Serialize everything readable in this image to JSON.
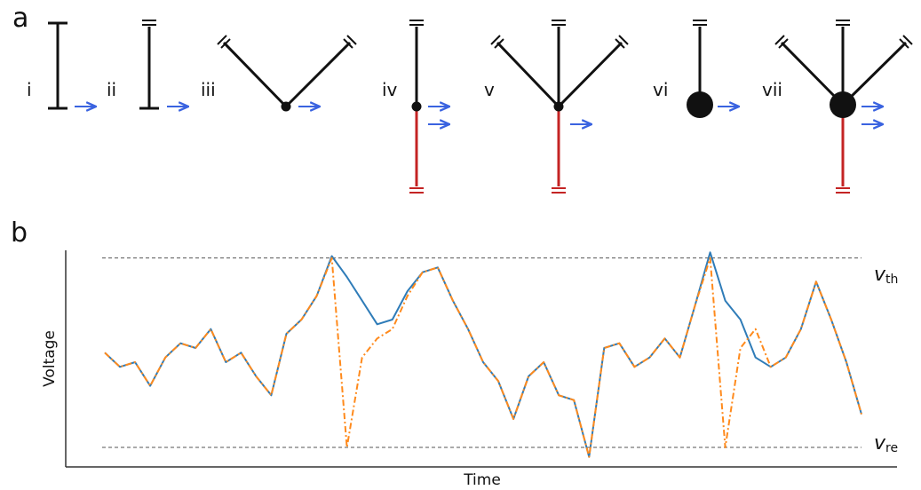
{
  "panel_a": {
    "label": "a",
    "models": [
      {
        "numeral": "i"
      },
      {
        "numeral": "ii"
      },
      {
        "numeral": "iii"
      },
      {
        "numeral": "iv"
      },
      {
        "numeral": "v"
      },
      {
        "numeral": "vi"
      },
      {
        "numeral": "vii"
      }
    ],
    "colors": {
      "dendrite": "#111111",
      "axon": "#c42424",
      "arrow": "#3a63e0"
    }
  },
  "panel_b": {
    "label": "b",
    "threshold_label": {
      "symbol": "v",
      "sub": "th"
    },
    "reset_label": {
      "symbol": "v",
      "sub": "re"
    },
    "colors": {
      "full": "#2f7cb8",
      "reduced": "#ff8a1c",
      "guide": "#555555"
    }
  },
  "chart_data": {
    "type": "line",
    "title": "",
    "xlabel": "Time",
    "ylabel": "Voltage",
    "ylim": [
      -1.15,
      1.1
    ],
    "threshold": 1.0,
    "reset": -1.0,
    "x": [
      0,
      4,
      8,
      12,
      16,
      20,
      24,
      28,
      32,
      36,
      40,
      44,
      48,
      52,
      56,
      60,
      64,
      68,
      72,
      76,
      80,
      84,
      88,
      92,
      96,
      100,
      104,
      108,
      112,
      116,
      120,
      124,
      128,
      132,
      136,
      140,
      144,
      148,
      152,
      156,
      160,
      164,
      168,
      172,
      176,
      180,
      184,
      188,
      192,
      196,
      200
    ],
    "series": [
      {
        "name": "",
        "values": [
          0.0,
          -0.15,
          -0.1,
          -0.35,
          -0.05,
          0.1,
          0.05,
          0.25,
          -0.1,
          0.0,
          -0.25,
          -0.45,
          0.2,
          0.35,
          0.6,
          1.02,
          0.8,
          0.55,
          0.3,
          0.35,
          0.65,
          0.85,
          0.9,
          0.55,
          0.25,
          -0.1,
          -0.3,
          -0.7,
          -0.25,
          -0.1,
          -0.45,
          -0.5,
          -1.1,
          0.05,
          0.1,
          -0.15,
          -0.05,
          0.15,
          -0.05,
          0.5,
          1.06,
          0.55,
          0.35,
          -0.05,
          -0.15,
          -0.05,
          0.25,
          0.75,
          0.35,
          -0.1,
          -0.65
        ]
      },
      {
        "name": "",
        "values": [
          0.0,
          -0.15,
          -0.1,
          -0.35,
          -0.05,
          0.1,
          0.05,
          0.25,
          -0.1,
          0.0,
          -0.25,
          -0.45,
          0.2,
          0.35,
          0.6,
          1.0,
          -1.0,
          -0.05,
          0.15,
          0.25,
          0.6,
          0.85,
          0.9,
          0.55,
          0.25,
          -0.1,
          -0.3,
          -0.7,
          -0.25,
          -0.1,
          -0.45,
          -0.5,
          -1.1,
          0.05,
          0.1,
          -0.15,
          -0.05,
          0.15,
          -0.05,
          0.5,
          1.0,
          -1.0,
          0.05,
          0.25,
          -0.15,
          -0.05,
          0.25,
          0.75,
          0.35,
          -0.1,
          -0.65
        ]
      }
    ]
  }
}
